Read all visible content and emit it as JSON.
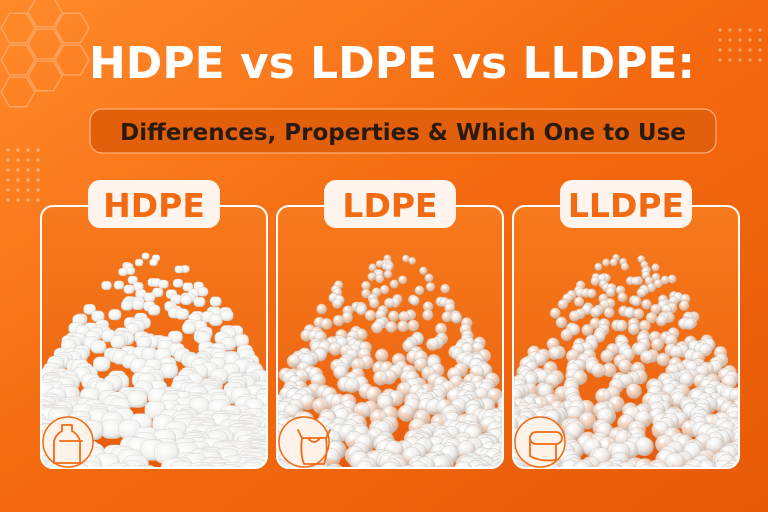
{
  "header": {
    "title": "HDPE vs LDPE vs LLDPE:",
    "subtitle": "Differences, Properties & Which One to Use"
  },
  "cards": [
    {
      "label": "HDPE"
    },
    {
      "label": "LDPE"
    },
    {
      "label": "LLDPE"
    }
  ]
}
